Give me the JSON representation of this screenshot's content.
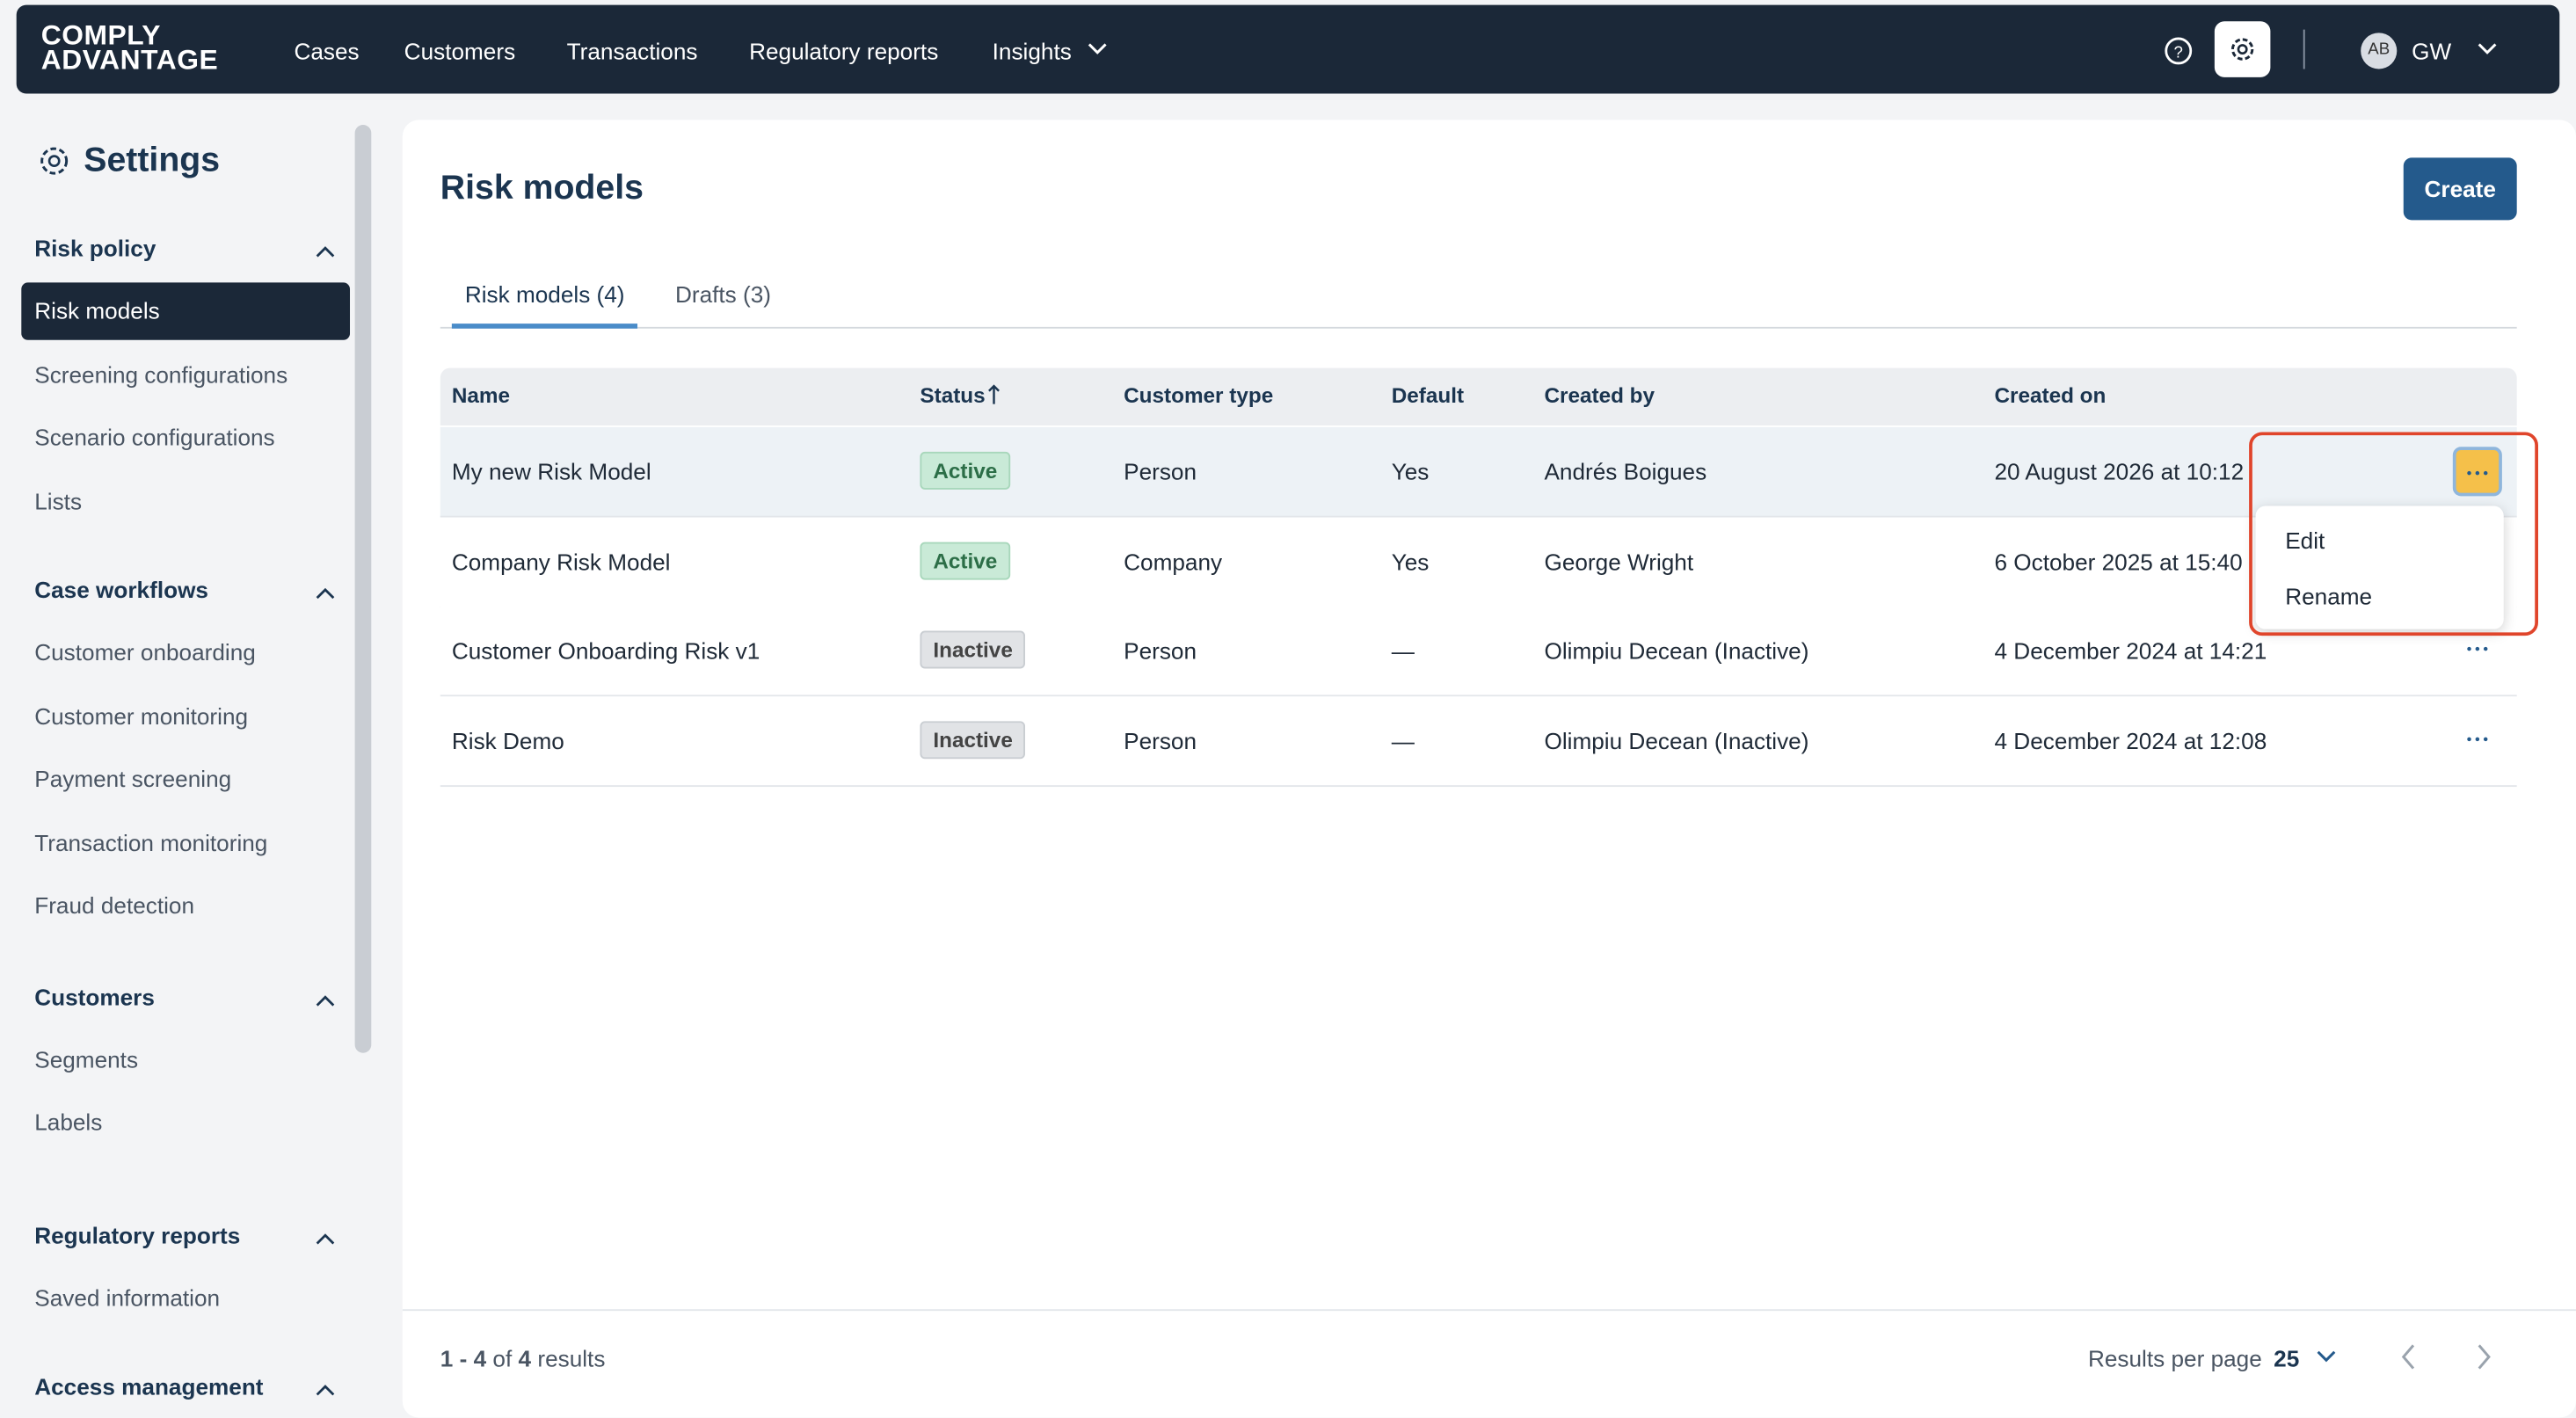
{
  "logo": {
    "line1": "COMPLY",
    "line2": "ADVANTAGE"
  },
  "nav": {
    "items": [
      "Cases",
      "Customers",
      "Transactions",
      "Regulatory reports",
      "Insights"
    ],
    "user_initials": "AB",
    "user_name": "GW"
  },
  "sidebar": {
    "title": "Settings",
    "sections": [
      {
        "title": "Risk policy",
        "items": [
          "Risk models",
          "Screening configurations",
          "Scenario configurations",
          "Lists"
        ]
      },
      {
        "title": "Case workflows",
        "items": [
          "Customer onboarding",
          "Customer monitoring",
          "Payment screening",
          "Transaction monitoring",
          "Fraud detection"
        ]
      },
      {
        "title": "Customers",
        "items": [
          "Segments",
          "Labels"
        ]
      },
      {
        "title": "Regulatory reports",
        "items": [
          "Saved information"
        ]
      },
      {
        "title": "Access management",
        "items": []
      }
    ]
  },
  "page": {
    "title": "Risk models",
    "create_button": "Create",
    "tabs": [
      "Risk models (4)",
      "Drafts (3)"
    ]
  },
  "table": {
    "headers": [
      "Name",
      "Status",
      "Customer type",
      "Default",
      "Created by",
      "Created on"
    ],
    "rows": [
      [
        "My new Risk Model",
        "Active",
        "Person",
        "Yes",
        "Andrés Boigues",
        "20 August 2026 at 10:12"
      ],
      [
        "Company Risk Model",
        "Active",
        "Company",
        "Yes",
        "George Wright",
        "6 October 2025 at 15:40"
      ],
      [
        "Customer Onboarding Risk v1",
        "Inactive",
        "Person",
        "—",
        "Olimpiu Decean (Inactive)",
        "4 December 2024 at 14:21"
      ],
      [
        "Risk Demo",
        "Inactive",
        "Person",
        "—",
        "Olimpiu Decean (Inactive)",
        "4 December 2024 at 12:08"
      ]
    ]
  },
  "menu": {
    "items": [
      "Edit",
      "Rename"
    ]
  },
  "pagination": {
    "range": "1 - 4",
    "of": "of",
    "total": "4",
    "results": "results",
    "per_page_label": "Results per page",
    "per_page": "25"
  }
}
